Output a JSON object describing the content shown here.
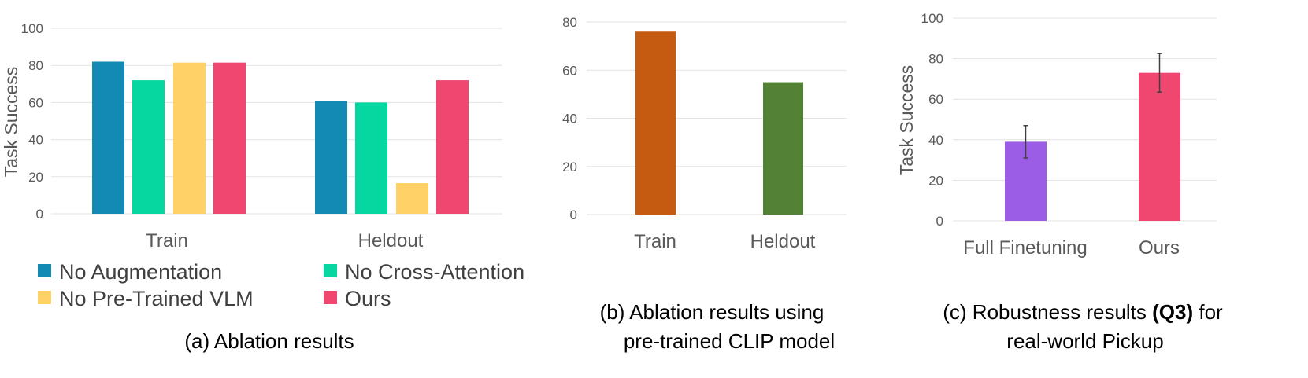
{
  "chart_data": [
    {
      "type": "bar",
      "id": "a",
      "ylabel": "Task Success",
      "ylim": [
        0,
        100
      ],
      "yticks": [
        0,
        20,
        40,
        60,
        80,
        100
      ],
      "categories": [
        "Train",
        "Heldout"
      ],
      "series": [
        {
          "name": "No Augmentation",
          "color": "#138ab3",
          "values": [
            82,
            61
          ]
        },
        {
          "name": "No Cross-Attention",
          "color": "#06d6a0",
          "values": [
            72,
            60
          ]
        },
        {
          "name": "No Pre-Trained VLM",
          "color": "#ffd166",
          "values": [
            81.5,
            16.5
          ]
        },
        {
          "name": "Ours",
          "color": "#ef476f",
          "values": [
            81.5,
            72
          ]
        }
      ],
      "caption": "(a) Ablation results",
      "legend_position": "bottom"
    },
    {
      "type": "bar",
      "id": "b",
      "ylabel": "",
      "ylim": [
        0,
        80
      ],
      "yticks": [
        0,
        20,
        40,
        60,
        80
      ],
      "categories": [
        "Train",
        "Heldout"
      ],
      "values": [
        76,
        55
      ],
      "colors": [
        "#c55a11",
        "#538135"
      ],
      "caption_lines": [
        "(b) Ablation results using",
        "pre-trained CLIP model"
      ]
    },
    {
      "type": "bar",
      "id": "c",
      "ylabel": "Task Success",
      "ylim": [
        0,
        100
      ],
      "yticks": [
        0,
        20,
        40,
        60,
        80,
        100
      ],
      "categories": [
        "Full Finetuning",
        "Ours"
      ],
      "values": [
        39,
        73
      ],
      "errors": [
        8,
        9.5
      ],
      "colors": [
        "#9b5de5",
        "#ef476f"
      ],
      "caption": {
        "line1_before": "(c) Robustness results ",
        "line1_bold": "(Q3)",
        "line1_after": " for",
        "line2": "real-world Pickup"
      }
    }
  ]
}
